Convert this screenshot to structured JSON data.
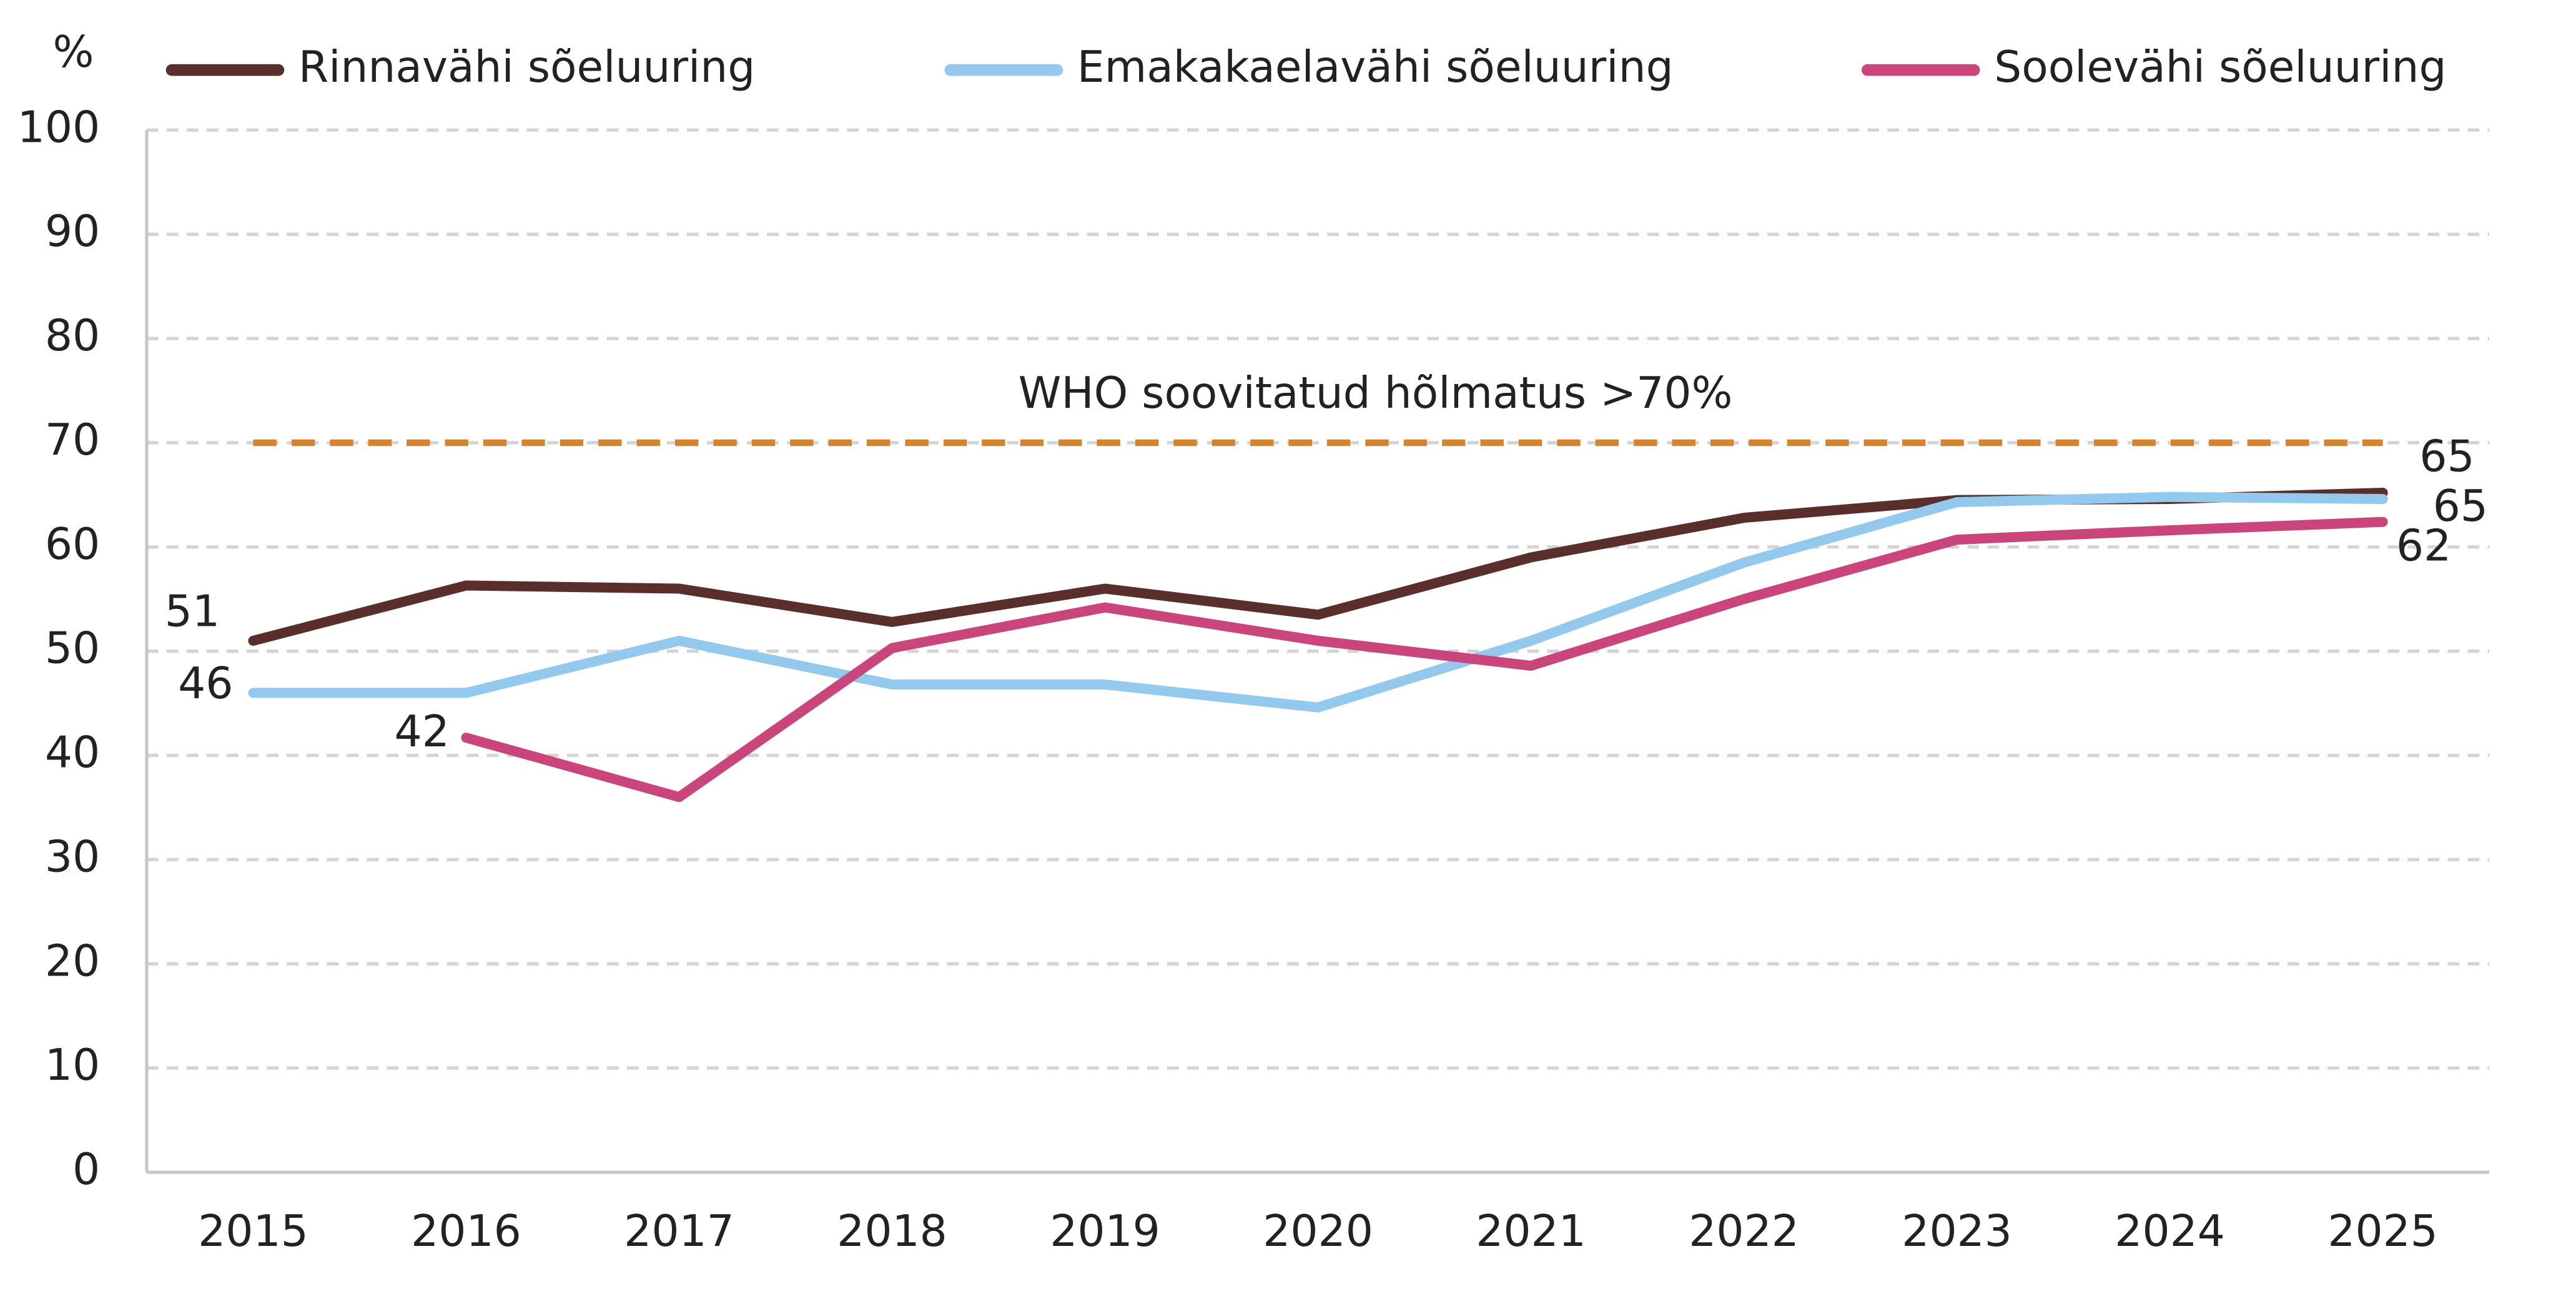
{
  "chart_data": {
    "type": "line",
    "y_label": "%",
    "categories": [
      "2015",
      "2016",
      "2017",
      "2018",
      "2019",
      "2020",
      "2021",
      "2022",
      "2023",
      "2024",
      "2025"
    ],
    "series": [
      {
        "name": "Rinnavähi sõeluuring",
        "color": "#5a2f2b",
        "values": [
          51,
          56.3,
          56,
          52.8,
          56,
          53.5,
          59,
          62.8,
          64.5,
          64.6,
          65.2
        ],
        "value_labels": [
          "51",
          null,
          null,
          null,
          null,
          null,
          null,
          null,
          null,
          null,
          "65"
        ]
      },
      {
        "name": "Emakakaelavähi sõeluuring",
        "color": "#92c9ec",
        "values": [
          46,
          46,
          51,
          46.8,
          46.8,
          44.6,
          51,
          58.5,
          64.3,
          64.8,
          64.6
        ],
        "value_labels": [
          "46",
          null,
          null,
          null,
          null,
          null,
          null,
          null,
          null,
          null,
          "65"
        ]
      },
      {
        "name": "Soolevähi sõeluuring",
        "color": "#c9457b",
        "values": [
          null,
          41.7,
          36,
          50.3,
          54.2,
          51,
          48.6,
          55,
          60.7,
          61.6,
          62.4
        ],
        "value_labels": [
          null,
          "42",
          null,
          null,
          null,
          null,
          null,
          null,
          null,
          null,
          "62"
        ]
      }
    ],
    "reference": {
      "value": 70,
      "label": "WHO soovitatud hõlmatus >70%",
      "color": "#d4832e"
    },
    "ylim": [
      0,
      100
    ],
    "yticks": [
      0,
      10,
      20,
      30,
      40,
      50,
      60,
      70,
      80,
      90,
      100
    ],
    "grid": true,
    "legend": "top"
  }
}
